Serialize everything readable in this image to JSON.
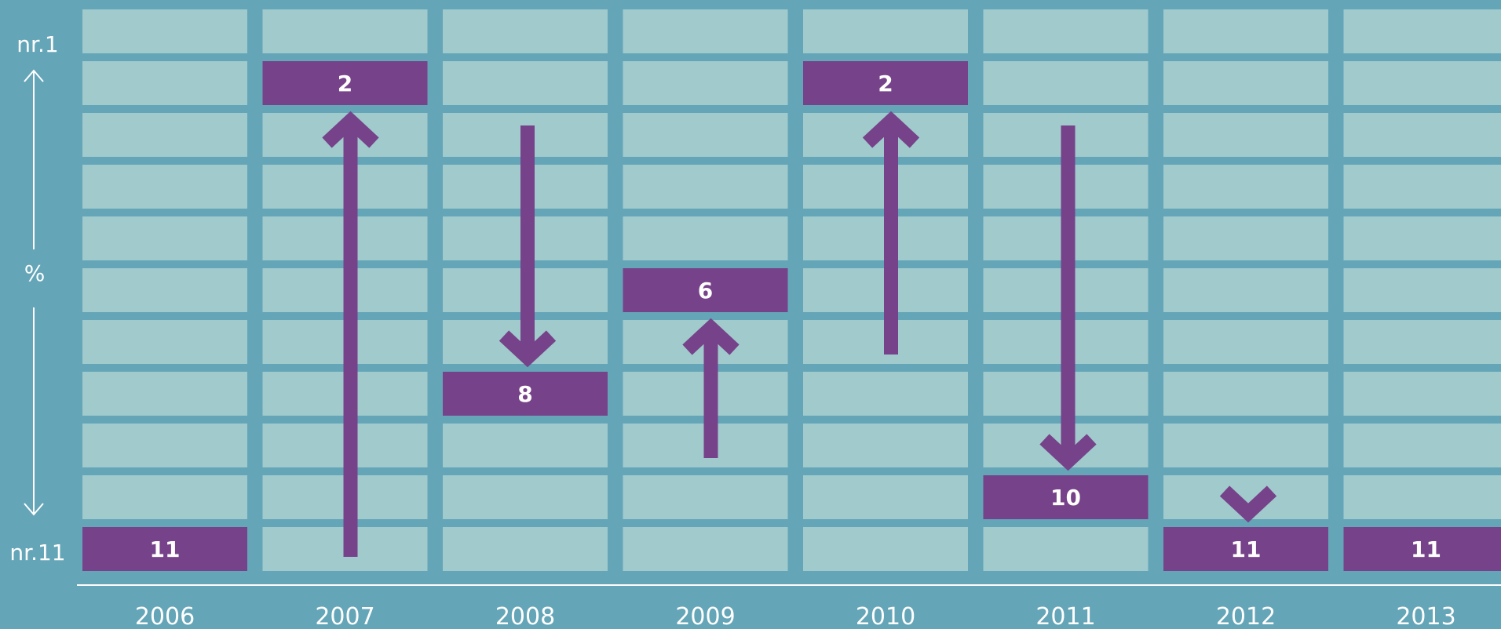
{
  "chart_data": {
    "type": "table",
    "categories": [
      "2006",
      "2007",
      "2008",
      "2009",
      "2010",
      "2011",
      "2012",
      "2013"
    ],
    "rank_range": [
      1,
      11
    ],
    "y_axis": {
      "top_label": "nr.1",
      "bottom_label": "nr.11",
      "middle_label": "%"
    },
    "ranks": [
      11,
      2,
      8,
      6,
      2,
      10,
      11,
      11
    ],
    "value_labels": [
      "11",
      "2",
      "8",
      "6",
      "2",
      "10",
      "11",
      "11"
    ],
    "movement_arrows": [
      {
        "year": "2007",
        "from_rank": 11,
        "to_rank": 2,
        "direction": "up"
      },
      {
        "year": "2008",
        "from_rank": 2,
        "to_rank": 8,
        "direction": "down"
      },
      {
        "year": "2009",
        "from_rank": 8,
        "to_rank": 6,
        "direction": "up"
      },
      {
        "year": "2010",
        "from_rank": 6,
        "to_rank": 2,
        "direction": "up"
      },
      {
        "year": "2011",
        "from_rank": 2,
        "to_rank": 10,
        "direction": "down"
      },
      {
        "year": "2012",
        "from_rank": 10,
        "to_rank": 11,
        "direction": "down"
      }
    ]
  },
  "colors": {
    "background": "#64a5b8",
    "cell": "#a0cacc",
    "highlight": "#764289",
    "text": "#ffffff"
  }
}
